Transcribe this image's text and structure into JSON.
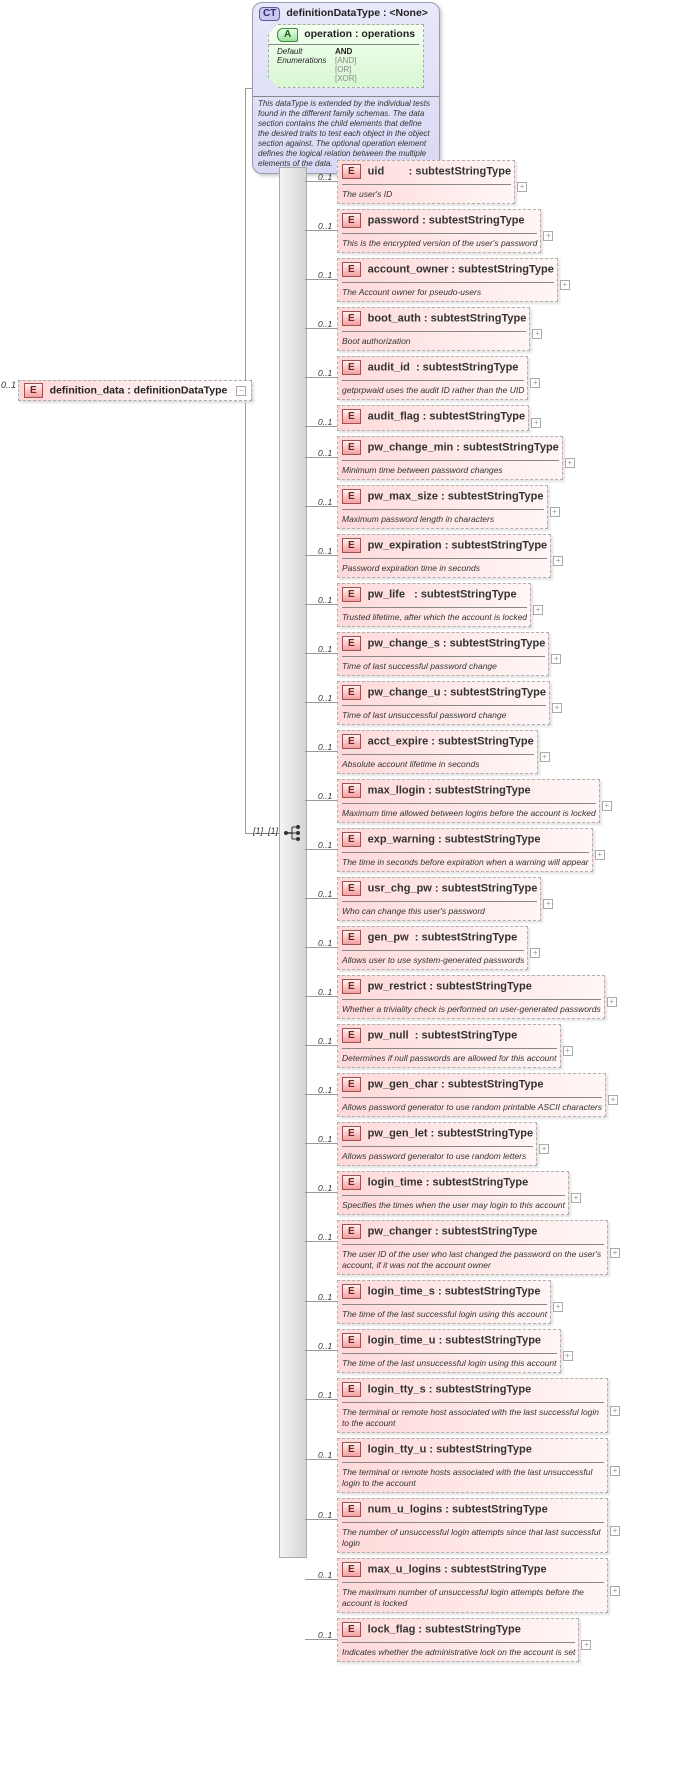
{
  "root_element": {
    "badge": "E",
    "name": "definition_data : definitionDataType",
    "multiplicity": "0..1"
  },
  "complex_type": {
    "badge": "CT",
    "title": "definitionDataType : <None>",
    "attribute": {
      "badge": "A",
      "title": "operation : operations",
      "default_label": "Default",
      "default_value": "AND",
      "enum_label": "Enumerations",
      "enumerations": [
        "[AND]",
        "[OR]",
        "[XOR]"
      ]
    },
    "documentation": "This dataType is extended by the individual tests found in the different family schemas.  The data section contains the child elements that define the desired traits to test each object in the object section against.  The optional operation element defines the logical relation between the multiple elements of the data."
  },
  "sequence": {
    "multiplicity": "[1]..[1]",
    "icon": "sequence-icon"
  },
  "colors": {
    "element": "#ffd6d6",
    "complex_type": "#dcdcf6",
    "attribute": "#dcf7d6"
  },
  "elements": [
    {
      "name": "uid        : subtestStringType",
      "desc": "The user's ID",
      "mult": "0..1"
    },
    {
      "name": "password : subtestStringType",
      "desc": "This is the encrypted version of the user's password",
      "mult": "0..1"
    },
    {
      "name": "account_owner : subtestStringType",
      "desc": "The Account owner for pseudo-users",
      "mult": "0..1"
    },
    {
      "name": "boot_auth : subtestStringType",
      "desc": "Boot authorization",
      "mult": "0..1"
    },
    {
      "name": "audit_id  : subtestStringType",
      "desc": "getprpwaid uses the audit ID rather than the UID",
      "mult": "0..1"
    },
    {
      "name": "audit_flag : subtestStringType",
      "desc": "",
      "mult": "0..1"
    },
    {
      "name": "pw_change_min : subtestStringType",
      "desc": "Minimum time between password changes",
      "mult": "0..1"
    },
    {
      "name": "pw_max_size : subtestStringType",
      "desc": "Maximum password length in characters",
      "mult": "0..1"
    },
    {
      "name": "pw_expiration : subtestStringType",
      "desc": "Password expiration time in seconds",
      "mult": "0..1"
    },
    {
      "name": "pw_life   : subtestStringType",
      "desc": "Trusted lifetime, after which the account is locked",
      "mult": "0..1"
    },
    {
      "name": "pw_change_s : subtestStringType",
      "desc": "Time of last successful password change",
      "mult": "0..1"
    },
    {
      "name": "pw_change_u : subtestStringType",
      "desc": "Time of last unsuccessful password change",
      "mult": "0..1"
    },
    {
      "name": "acct_expire : subtestStringType",
      "desc": "Absolute account lifetime in seconds",
      "mult": "0..1"
    },
    {
      "name": "max_llogin : subtestStringType",
      "desc": "Maximum time allowed between logins before the account is locked",
      "mult": "0..1"
    },
    {
      "name": "exp_warning : subtestStringType",
      "desc": "The time in seconds before expiration when a warning will appear",
      "mult": "0..1"
    },
    {
      "name": "usr_chg_pw : subtestStringType",
      "desc": "Who can change this user's password",
      "mult": "0..1"
    },
    {
      "name": "gen_pw  : subtestStringType",
      "desc": "Allows user to use system-generated passwords",
      "mult": "0..1"
    },
    {
      "name": "pw_restrict : subtestStringType",
      "desc": "Whether a triviality check is performed on user-generated passwords",
      "mult": "0..1"
    },
    {
      "name": "pw_null  : subtestStringType",
      "desc": "Determines if null passwords are allowed for this account",
      "mult": "0..1"
    },
    {
      "name": "pw_gen_char : subtestStringType",
      "desc": "Allows password generator to use random printable ASCII characters",
      "mult": "0..1"
    },
    {
      "name": "pw_gen_let : subtestStringType",
      "desc": "Allows password generator to use random letters",
      "mult": "0..1"
    },
    {
      "name": "login_time : subtestStringType",
      "desc": "Specifies the times when the user may login to this account",
      "mult": "0..1"
    },
    {
      "name": "pw_changer : subtestStringType",
      "desc": "The user ID of the user who last changed the password on the user's account, if it was not the account owner",
      "mult": "0..1"
    },
    {
      "name": "login_time_s : subtestStringType",
      "desc": "The time of the last successful login using this account",
      "mult": "0..1"
    },
    {
      "name": "login_time_u : subtestStringType",
      "desc": "The time of the last unsuccessful login using this account",
      "mult": "0..1"
    },
    {
      "name": "login_tty_s : subtestStringType",
      "desc": "The terminal or remote host associated with the last successful login to the account",
      "mult": "0..1"
    },
    {
      "name": "login_tty_u : subtestStringType",
      "desc": "The terminal or remote hosts associated with the last unsuccessful login to the account",
      "mult": "0..1"
    },
    {
      "name": "num_u_logins : subtestStringType",
      "desc": "The number of unsuccessful login attempts since that last successful login",
      "mult": "0..1"
    },
    {
      "name": "max_u_logins : subtestStringType",
      "desc": "The maximum number of unsuccessful login attempts before the account is locked",
      "mult": "0..1"
    },
    {
      "name": "lock_flag : subtestStringType",
      "desc": "Indicates whether the administrative lock on the account is set",
      "mult": "0..1"
    }
  ]
}
